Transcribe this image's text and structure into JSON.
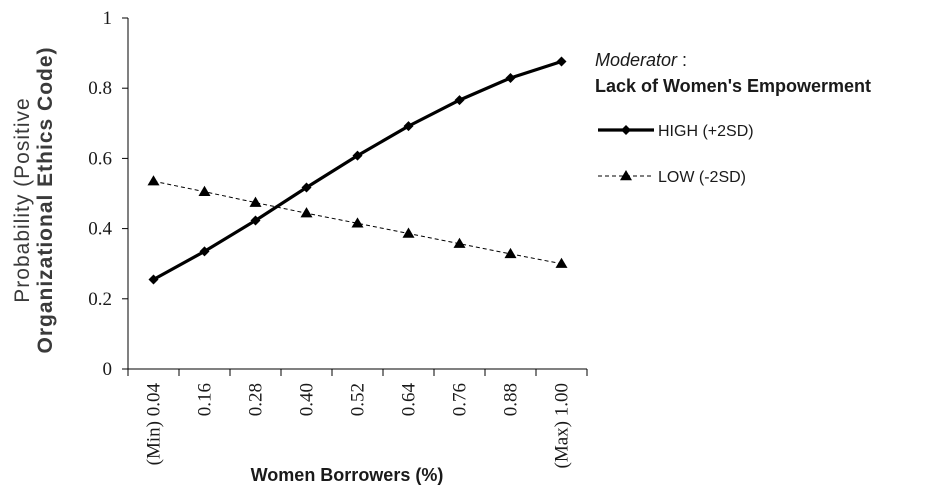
{
  "chart_data": {
    "type": "line",
    "ylabel_line1": "Probability (Positive",
    "ylabel_line2": "Organizational Ethics Code)",
    "xlabel": "Women Borrowers (%)",
    "ylim": [
      0,
      1
    ],
    "yticks": [
      "0",
      "0.2",
      "0.4",
      "0.6",
      "0.8",
      "1"
    ],
    "categories": [
      "(Min) 0.04",
      "0.16",
      "0.28",
      "0.40",
      "0.52",
      "0.64",
      "0.76",
      "0.88",
      "(Max) 1.00"
    ],
    "legend": {
      "title_italic": "Moderator",
      "title_colon": " :",
      "title_bold": "Lack of Women's Empowerment",
      "position": "right"
    },
    "series": [
      {
        "name": "HIGH (+2SD)",
        "values": [
          0.255,
          0.335,
          0.423,
          0.517,
          0.608,
          0.692,
          0.766,
          0.829,
          0.876
        ],
        "style": "solid",
        "marker": "diamond",
        "color": "#000000"
      },
      {
        "name": "LOW (-2SD)",
        "values": [
          0.535,
          0.505,
          0.474,
          0.444,
          0.415,
          0.386,
          0.357,
          0.328,
          0.3
        ],
        "style": "dashed",
        "marker": "triangle",
        "color": "#000000"
      }
    ],
    "grid": false
  }
}
